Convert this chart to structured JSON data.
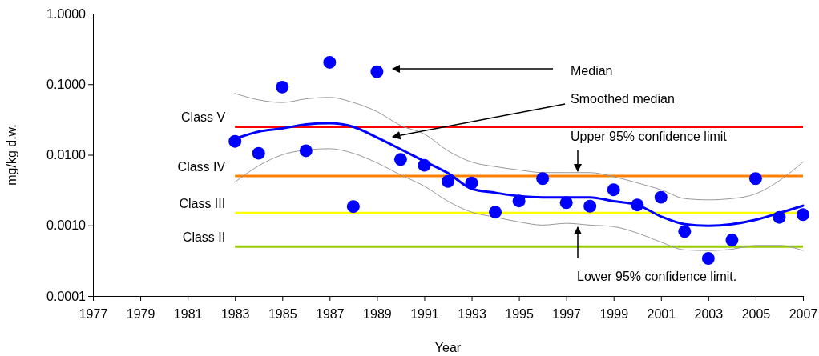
{
  "chart_data": {
    "type": "scatter",
    "xlabel": "Year",
    "ylabel": "mg/kg d.w.",
    "log": "y",
    "xlim": [
      1977,
      2007
    ],
    "xticks": [
      1977,
      1979,
      1981,
      1983,
      1985,
      1987,
      1989,
      1991,
      1993,
      1995,
      1997,
      1999,
      2001,
      2003,
      2005,
      2007
    ],
    "ylim": [
      0.0001,
      1
    ],
    "yticks": [
      {
        "value": 0.0001,
        "label": "0.0001"
      },
      {
        "value": 0.001,
        "label": "0.0010"
      },
      {
        "value": 0.01,
        "label": "0.0100"
      },
      {
        "value": 0.1,
        "label": "0.1000"
      },
      {
        "value": 1,
        "label": "1.0000"
      }
    ],
    "grid": false,
    "x": [
      1983,
      1984,
      1985,
      1986,
      1987,
      1988,
      1989,
      1990,
      1991,
      1992,
      1993,
      1994,
      1995,
      1996,
      1997,
      1998,
      1999,
      2000,
      2001,
      2002,
      2003,
      2004,
      2005,
      2006,
      2007
    ],
    "series": [
      {
        "type": "line",
        "color": "#999999",
        "marker": "none",
        "values": [
          0.074,
          0.06,
          0.055,
          0.062,
          0.065,
          0.055,
          0.041,
          0.026,
          0.0197,
          0.0114,
          0.0079,
          0.0068,
          0.0061,
          0.0056,
          0.0056,
          0.0056,
          0.0049,
          0.004,
          0.0032,
          0.0024,
          0.0023,
          0.0024,
          0.0028,
          0.0043,
          0.0079
        ]
      },
      {
        "type": "line",
        "color": "#999999",
        "marker": "none",
        "values": [
          0.0041,
          0.007,
          0.01,
          0.0117,
          0.0122,
          0.0105,
          0.0077,
          0.0052,
          0.0036,
          0.0022,
          0.00154,
          0.00131,
          0.00112,
          0.00101,
          0.00107,
          0.00101,
          0.00096,
          0.00078,
          0.00058,
          0.00045,
          0.00044,
          0.00046,
          0.00052,
          0.00052,
          0.00044
        ]
      },
      {
        "type": "line",
        "color": "#0000ff",
        "marker": "none",
        "values": [
          0.0168,
          0.0213,
          0.0236,
          0.027,
          0.028,
          0.0249,
          0.0176,
          0.012,
          0.0081,
          0.0055,
          0.0033,
          0.0029,
          0.0026,
          0.0025,
          0.0025,
          0.0025,
          0.0022,
          0.00195,
          0.00134,
          0.00104,
          0.00099,
          0.00104,
          0.0012,
          0.0015,
          0.0019
        ]
      },
      {
        "color": "#0000ff",
        "marker": "circle",
        "values": [
          0.0155,
          0.0105,
          0.091,
          0.0114,
          0.204,
          0.00185,
          0.15,
          0.0086,
          0.0071,
          0.0042,
          0.004,
          0.00154,
          0.00222,
          0.0046,
          0.0021,
          0.00187,
          0.0032,
          0.00195,
          0.0025,
          0.00082,
          0.00034,
          0.00062,
          0.0046,
          0.0013,
          0.00142
        ]
      }
    ],
    "ref_lines": [
      {
        "axis": "y",
        "value": 0.025,
        "label": "Class V",
        "color": "#ff0000"
      },
      {
        "axis": "y",
        "value": 0.005,
        "label": "Class IV",
        "color": "#ff8000"
      },
      {
        "axis": "y",
        "value": 0.0015,
        "label": "Class III",
        "color": "#ffff00"
      },
      {
        "axis": "y",
        "value": 0.0005,
        "label": "Class II",
        "color": "#99cc00"
      }
    ],
    "annotations": [
      "Median",
      "Smoothed median",
      "Upper 95% confidence limit",
      "Lower 95% confidence limit."
    ]
  }
}
